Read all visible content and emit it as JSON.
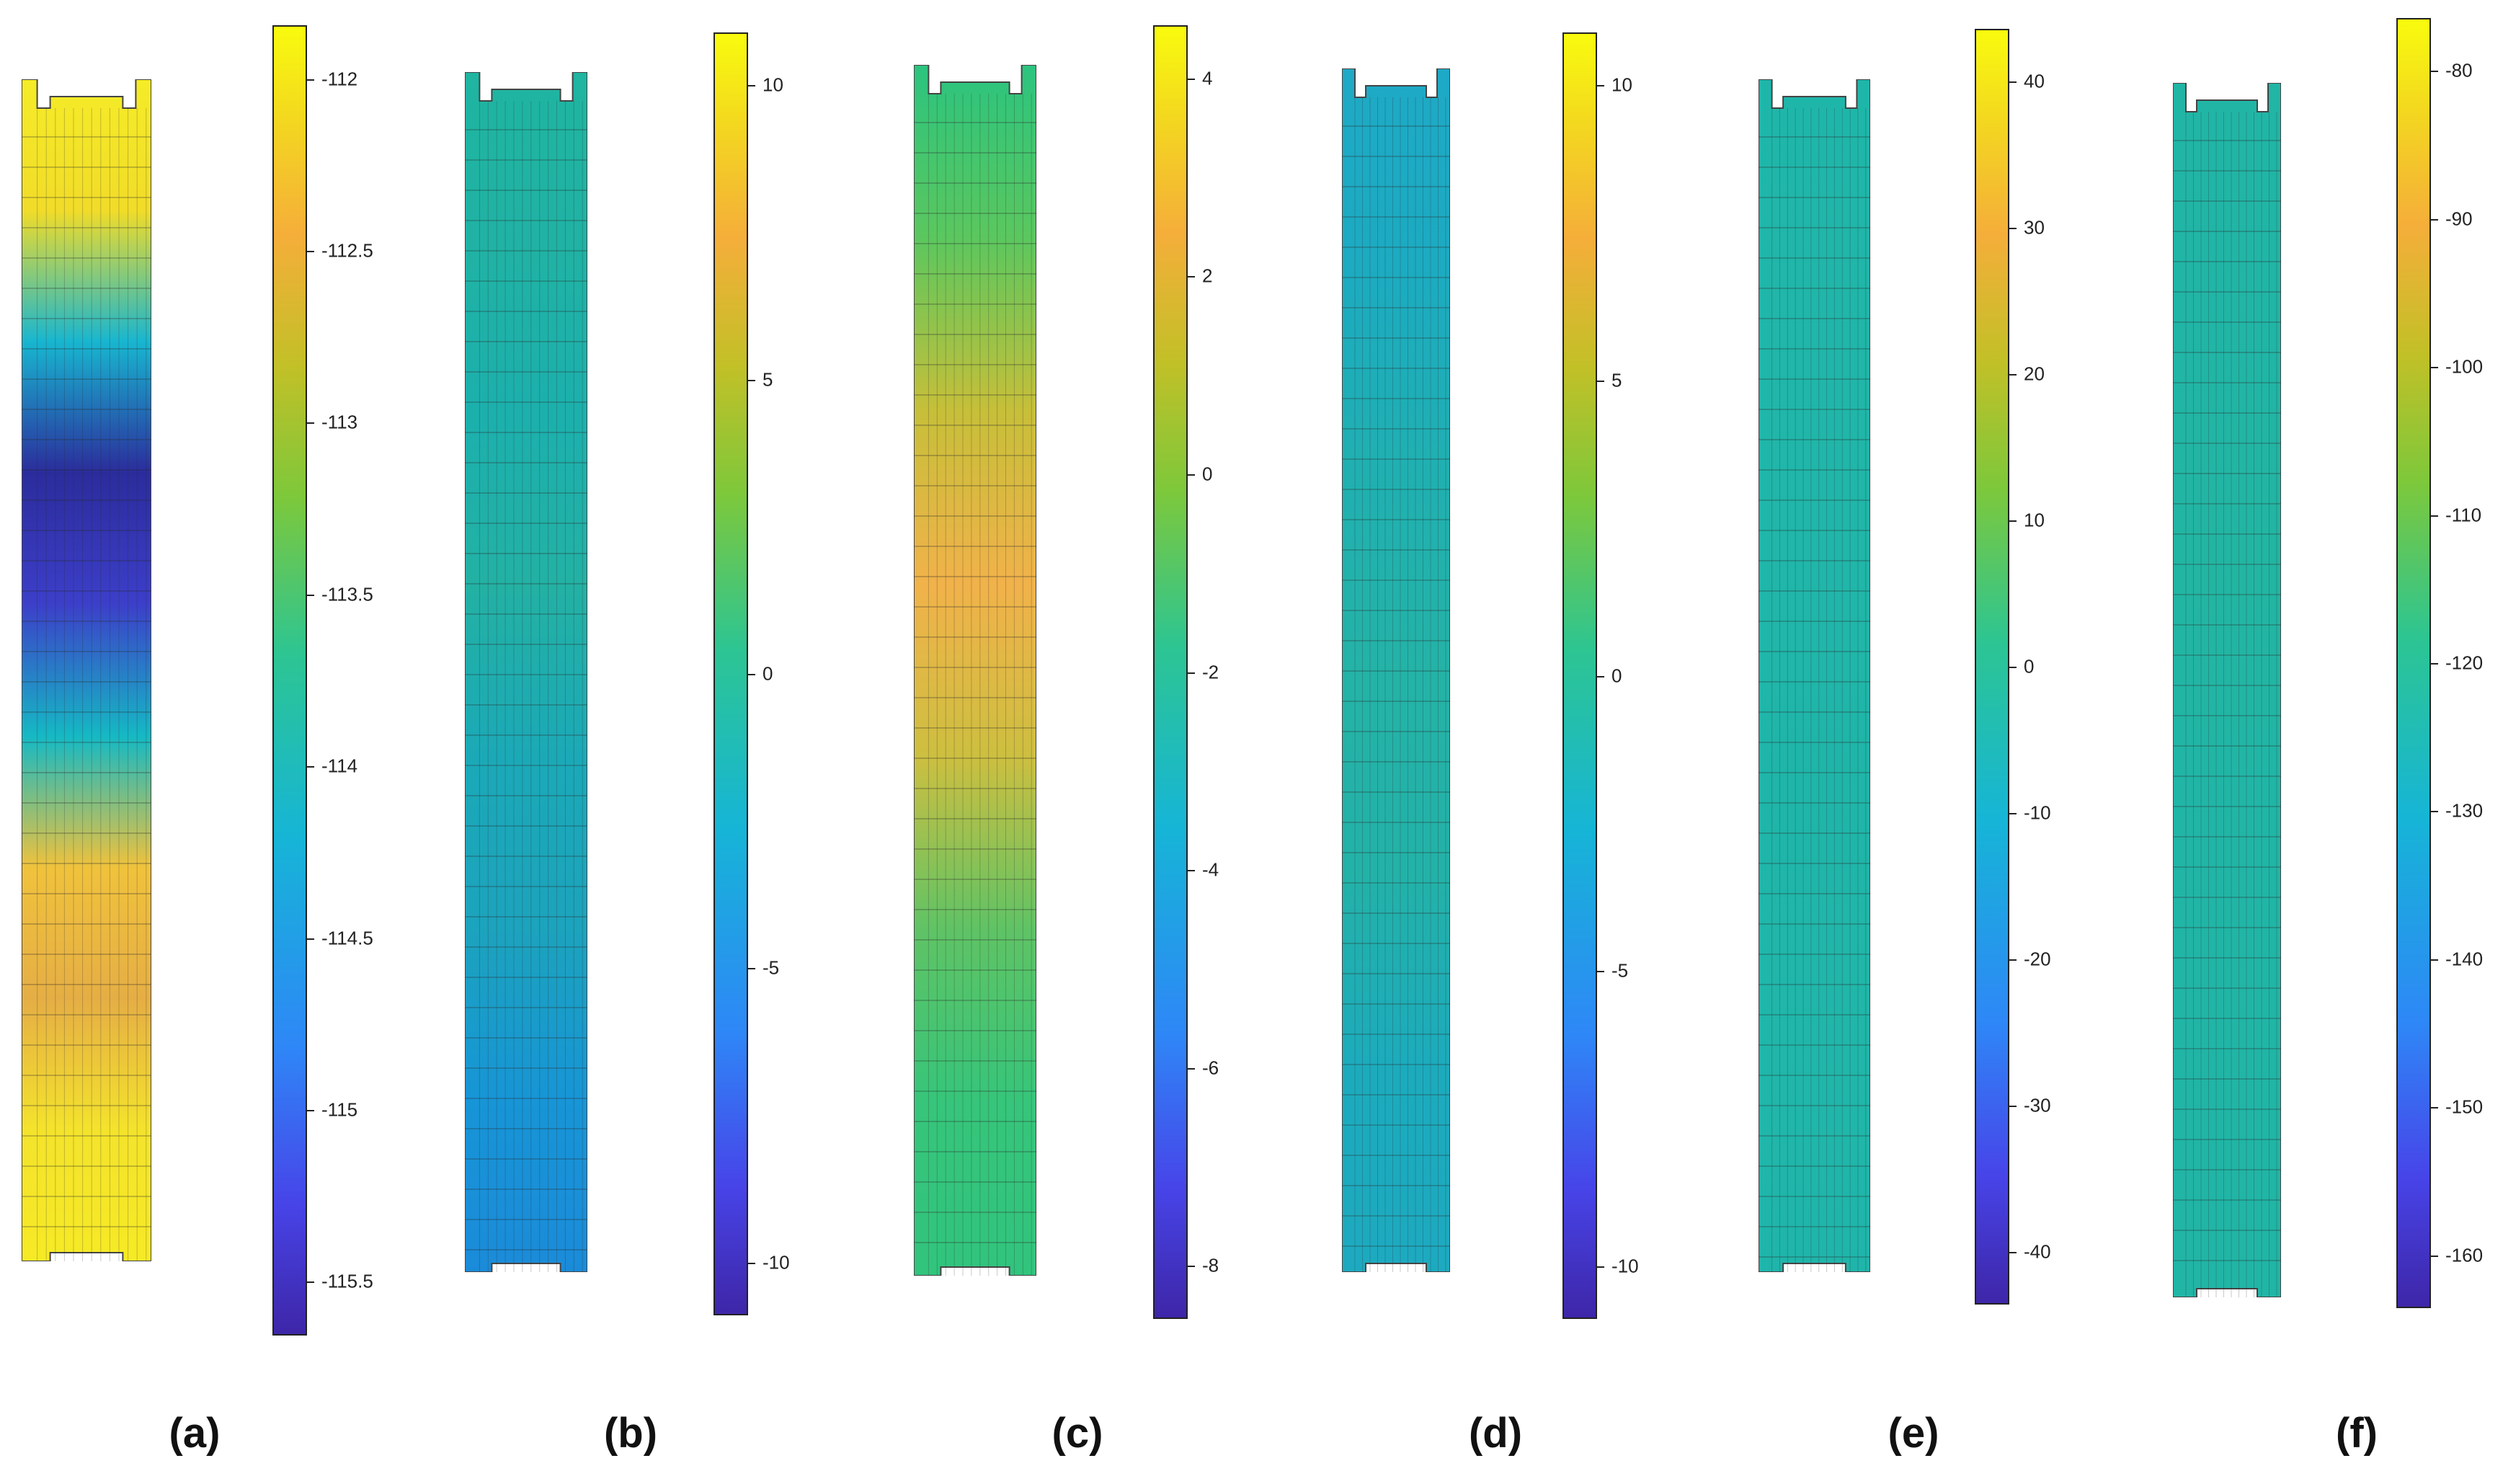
{
  "panels": [
    {
      "label": "(a)",
      "ticks": [
        "-112",
        "-112.5",
        "-113",
        "-113.5",
        "-114",
        "-114.5",
        "-115",
        "-115.5"
      ],
      "colors": [
        "#f5ec27",
        "#f1dc29",
        "#18b6d0",
        "#2b2c9c",
        "#3c3fc9",
        "#15b9c4",
        "#f0c23c",
        "#e5ae45",
        "#f4e32c",
        "#f6ea25"
      ]
    },
    {
      "label": "(b)",
      "ticks": [
        "10",
        "5",
        "0",
        "-5",
        "-10"
      ],
      "colors": [
        "#1fb5a1",
        "#20b2a4",
        "#1cb0ad",
        "#23b1a4",
        "#1ba9b7",
        "#1ca3bd",
        "#1795d6",
        "#1b8bd9"
      ]
    },
    {
      "label": "(c)",
      "ticks": [
        "4",
        "2",
        "0",
        "-2",
        "-4",
        "-6",
        "-8"
      ],
      "colors": [
        "#2bc47f",
        "#5bc75e",
        "#c7bf39",
        "#f1b24a",
        "#cdbf40",
        "#5fc365",
        "#36c57a",
        "#31c47d"
      ]
    },
    {
      "label": "(d)",
      "ticks": [
        "10",
        "5",
        "0",
        "-5",
        "-10"
      ],
      "colors": [
        "#1ea9c6",
        "#1cabc1",
        "#20b0b1",
        "#24b3a7",
        "#23b2a8",
        "#1cabbd",
        "#1daac0"
      ]
    },
    {
      "label": "(e)",
      "ticks": [
        "40",
        "30",
        "20",
        "10",
        "0",
        "-10",
        "-20",
        "-30",
        "-40"
      ],
      "colors": [
        "#1fb6aa",
        "#20b6a9",
        "#20b6a9",
        "#1fb5a9",
        "#20b6a9",
        "#1fb5ab"
      ]
    },
    {
      "label": "(f)",
      "ticks": [
        "-80",
        "-90",
        "-100",
        "-110",
        "-120",
        "-130",
        "-140",
        "-150",
        "-160"
      ],
      "colors": [
        "#21b5a6",
        "#21b5a6",
        "#22b5a2",
        "#21b5a6",
        "#21b5a6",
        "#21b5a6"
      ]
    }
  ]
}
